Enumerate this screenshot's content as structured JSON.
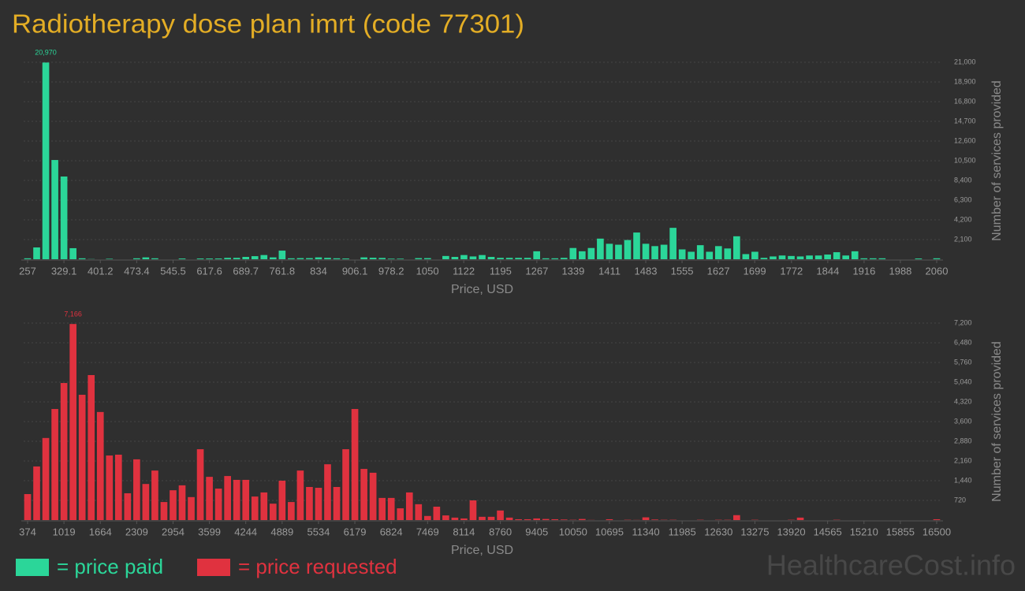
{
  "chart_data": [
    {
      "type": "bar",
      "title": "Radiotherapy dose plan imrt (code 77301)",
      "x_label": "Price, USD",
      "y_label": "Number of services provided",
      "grid": true,
      "xlim": [
        257,
        2060
      ],
      "ylim": [
        0,
        21000
      ],
      "xticks": [
        257,
        329.1,
        401.2,
        473.4,
        545.5,
        617.6,
        689.7,
        761.8,
        834,
        906.1,
        978.2,
        1050,
        1122,
        1195,
        1267,
        1339,
        1411,
        1483,
        1555,
        1627,
        1699,
        1772,
        1844,
        1916,
        1988,
        2060
      ],
      "yticks": [
        {
          "value": 2100,
          "label": "2,100"
        },
        {
          "value": 4200,
          "label": "4,200"
        },
        {
          "value": 6300,
          "label": "6,300"
        },
        {
          "value": 8400,
          "label": "8,400"
        },
        {
          "value": 10500,
          "label": "10,500"
        },
        {
          "value": 12600,
          "label": "12,600"
        },
        {
          "value": 14700,
          "label": "14,700"
        },
        {
          "value": 16800,
          "label": "16,800"
        },
        {
          "value": 18900,
          "label": "18,900"
        },
        {
          "value": 21000,
          "label": "21,000"
        }
      ],
      "x": [
        257,
        275.03,
        293.06,
        311.09,
        329.12,
        347.15,
        365.18,
        383.21,
        401.24,
        419.27,
        437.3,
        455.33,
        473.36,
        491.39,
        509.42,
        527.45,
        545.48,
        563.51,
        581.54,
        599.57,
        617.6,
        635.63,
        653.66,
        671.69,
        689.72,
        707.75,
        725.78,
        743.81,
        761.84,
        779.87,
        797.9,
        815.93,
        833.96,
        851.99,
        870.02,
        888.05,
        906.08,
        924.11,
        942.14,
        960.17,
        978.2,
        996.23,
        1014.26,
        1032.29,
        1050.32,
        1068.35,
        1086.38,
        1104.41,
        1122.44,
        1140.47,
        1158.5,
        1176.53,
        1194.56,
        1212.59,
        1230.62,
        1248.65,
        1266.68,
        1284.71,
        1302.74,
        1320.77,
        1338.8,
        1356.83,
        1374.86,
        1392.89,
        1410.92,
        1428.95,
        1446.98,
        1465.01,
        1483.04,
        1501.07,
        1519.1,
        1537.13,
        1555.16,
        1573.19,
        1591.22,
        1609.25,
        1627.28,
        1645.31,
        1663.34,
        1681.37,
        1699.4,
        1717.43,
        1735.46,
        1753.49,
        1771.52,
        1789.55,
        1807.58,
        1825.61,
        1843.64,
        1861.67,
        1879.7,
        1897.73,
        1915.76,
        1933.79,
        1951.82,
        1969.85,
        1987.88,
        2005.91,
        2023.94,
        2041.97,
        2060
      ],
      "series": [
        {
          "name": "= price paid",
          "color": "#2bd699",
          "values": [
            100,
            1260,
            20970,
            10580,
            8820,
            1180,
            100,
            20,
            0,
            50,
            0,
            0,
            100,
            200,
            100,
            0,
            0,
            80,
            0,
            80,
            80,
            80,
            150,
            150,
            250,
            330,
            450,
            200,
            920,
            100,
            120,
            120,
            200,
            150,
            100,
            80,
            0,
            200,
            160,
            140,
            60,
            60,
            0,
            120,
            120,
            0,
            350,
            250,
            450,
            300,
            450,
            250,
            150,
            150,
            150,
            150,
            850,
            100,
            100,
            150,
            1200,
            850,
            1200,
            2200,
            1650,
            1550,
            2050,
            2850,
            1650,
            1400,
            1550,
            3350,
            1050,
            800,
            1500,
            800,
            1400,
            1150,
            2450,
            550,
            800,
            150,
            300,
            400,
            350,
            300,
            400,
            400,
            500,
            750,
            400,
            850,
            100,
            100,
            100,
            0,
            0,
            0,
            80,
            0,
            100
          ],
          "value_labels": [
            null,
            null,
            "20,970",
            null,
            null,
            null,
            null,
            null,
            null,
            null,
            null,
            null,
            null,
            null,
            null,
            null,
            null,
            null,
            null,
            null,
            null,
            null,
            null,
            null,
            null,
            null,
            null,
            null,
            null,
            null,
            null,
            null,
            null,
            null,
            null,
            null,
            null,
            null,
            null,
            null,
            null,
            null,
            null,
            null,
            null,
            null,
            null,
            null,
            null,
            null,
            null,
            null,
            null,
            null,
            null,
            null,
            null,
            null,
            null,
            null,
            null,
            null,
            null,
            null,
            null,
            null,
            null,
            null,
            null,
            null,
            null,
            null,
            null,
            null,
            null,
            null,
            null,
            null,
            null,
            null,
            null,
            null,
            null,
            null,
            null,
            null,
            null,
            null,
            null,
            null,
            null,
            null,
            null,
            null,
            null,
            null,
            null,
            null,
            null,
            null,
            null
          ]
        }
      ]
    },
    {
      "type": "bar",
      "annotation": "HealthcareCost.info",
      "x_label": "Price, USD",
      "y_label": "Number of services provided",
      "grid": true,
      "xlim": [
        374,
        16500
      ],
      "ylim": [
        0,
        7200
      ],
      "xticks": [
        374,
        1019,
        1664,
        2309,
        2954,
        3599,
        4244,
        4889,
        5534,
        6179,
        6824,
        7469,
        8114,
        8760,
        9405,
        10050,
        10695,
        11340,
        11985,
        12630,
        13275,
        13920,
        14565,
        15210,
        15855,
        16500
      ],
      "yticks": [
        720,
        {
          "value": 1440,
          "label": "1,440"
        },
        {
          "value": 2160,
          "label": "2,160"
        },
        {
          "value": 2880,
          "label": "2,880"
        },
        {
          "value": 3600,
          "label": "3,600"
        },
        {
          "value": 4320,
          "label": "4,320"
        },
        {
          "value": 5040,
          "label": "5,040"
        },
        {
          "value": 5760,
          "label": "5,760"
        },
        {
          "value": 6480,
          "label": "6,480"
        },
        {
          "value": 7200,
          "label": "7,200"
        }
      ],
      "x": [
        374,
        535.26,
        696.52,
        857.78,
        1019.04,
        1180.3,
        1341.56,
        1502.82,
        1664.08,
        1825.34,
        1986.6,
        2147.86,
        2309.12,
        2470.38,
        2631.64,
        2792.9,
        2954.16,
        3115.42,
        3276.68,
        3437.94,
        3599.2,
        3760.46,
        3921.72,
        4082.98,
        4244.24,
        4405.5,
        4566.76,
        4728.02,
        4889.28,
        5050.54,
        5211.8,
        5373.06,
        5534.32,
        5695.58,
        5856.84,
        6018.1,
        6179.36,
        6340.62,
        6501.88,
        6663.14,
        6824.4,
        6985.66,
        7146.92,
        7308.18,
        7469.44,
        7630.7,
        7791.96,
        7953.22,
        8114.48,
        8275.74,
        8437,
        8598.26,
        8759.52,
        8920.78,
        9082.04,
        9243.3,
        9404.56,
        9565.82,
        9727.08,
        9888.34,
        10049.6,
        10210.86,
        10372.12,
        10533.38,
        10694.64,
        10855.9,
        11017.16,
        11178.42,
        11339.68,
        11500.94,
        11662.2,
        11823.46,
        11984.72,
        12145.98,
        12307.24,
        12468.5,
        12629.76,
        12791.02,
        12952.28,
        13113.54,
        13274.8,
        13436.06,
        13597.32,
        13758.58,
        13919.84,
        14081.1,
        14242.36,
        14403.62,
        14564.88,
        14726.14,
        14887.4,
        15048.66,
        15209.92,
        15371.18,
        15532.44,
        15693.7,
        15854.96,
        16016.22,
        16177.48,
        16338.74,
        16500
      ],
      "series": [
        {
          "name": "= price requested",
          "color": "#e0323f",
          "values": [
            950,
            1960,
            3000,
            4060,
            5010,
            7166,
            4580,
            5300,
            3950,
            2360,
            2390,
            980,
            2220,
            1320,
            1810,
            660,
            1090,
            1270,
            840,
            2590,
            1580,
            1150,
            1610,
            1470,
            1470,
            860,
            1010,
            600,
            1440,
            660,
            1810,
            1210,
            1180,
            2040,
            1210,
            2590,
            4060,
            1870,
            1730,
            810,
            810,
            430,
            1010,
            580,
            150,
            490,
            170,
            90,
            60,
            720,
            120,
            120,
            350,
            90,
            30,
            30,
            60,
            40,
            30,
            20,
            10,
            40,
            5,
            0,
            30,
            0,
            10,
            5,
            100,
            20,
            10,
            10,
            0,
            0,
            10,
            0,
            10,
            10,
            180,
            0,
            10,
            0,
            0,
            0,
            10,
            90,
            0,
            0,
            0,
            10,
            0,
            0,
            0,
            0,
            0,
            0,
            0,
            0,
            0,
            0,
            30
          ],
          "value_labels": [
            null,
            null,
            null,
            null,
            null,
            "7,166",
            null,
            null,
            null,
            null,
            null,
            null,
            null,
            null,
            null,
            null,
            null,
            null,
            null,
            null,
            null,
            null,
            null,
            null,
            null,
            null,
            null,
            null,
            null,
            null,
            null,
            null,
            null,
            null,
            null,
            null,
            null,
            null,
            null,
            null,
            null,
            null,
            null,
            null,
            null,
            null,
            null,
            null,
            null,
            null,
            null,
            null,
            null,
            null,
            null,
            null,
            null,
            null,
            null,
            null,
            null,
            null,
            null,
            null,
            null,
            null,
            null,
            null,
            null,
            null,
            null,
            null,
            null,
            null,
            null,
            null,
            null,
            null,
            null,
            null,
            null,
            null,
            null,
            null,
            null,
            null,
            null,
            null,
            null,
            null,
            null,
            null,
            null,
            null,
            null,
            null,
            null,
            null,
            null,
            null,
            null
          ]
        }
      ]
    }
  ]
}
